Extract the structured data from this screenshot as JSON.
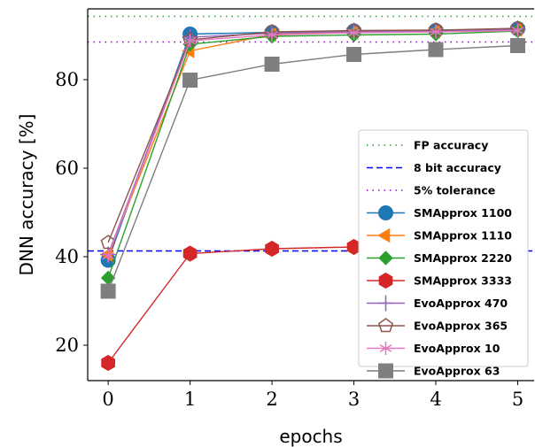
{
  "chart_data": {
    "type": "line",
    "title": "",
    "xlabel": "epochs",
    "ylabel": "DNN accuracy [%]",
    "xlim": [
      -0.25,
      5.2
    ],
    "ylim": [
      12,
      96
    ],
    "xticks": [
      0,
      1,
      2,
      3,
      4,
      5
    ],
    "yticks": [
      20,
      40,
      60,
      80
    ],
    "grid": false,
    "legend_position": "center-right",
    "reference_lines": [
      {
        "name": "FP accuracy",
        "y": 94.3,
        "style": "dotted",
        "color": "#2ca02c"
      },
      {
        "name": "8 bit accuracy",
        "y": 41.3,
        "style": "dashed",
        "color": "#0000ff"
      },
      {
        "name": "5% tolerance",
        "y": 88.5,
        "style": "dotted",
        "color": "#9400d3"
      }
    ],
    "x": [
      0,
      1,
      2,
      3,
      4,
      5
    ],
    "series": [
      {
        "name": "SMApprox 1100",
        "color": "#1f77b4",
        "marker": "circle",
        "values": [
          39.2,
          90.3,
          90.7,
          91.0,
          91.1,
          91.5
        ]
      },
      {
        "name": "SMApprox 1110",
        "color": "#ff7f0e",
        "marker": "triangle-left",
        "values": [
          40.5,
          86.5,
          90.2,
          90.7,
          90.9,
          91.3
        ]
      },
      {
        "name": "SMApprox 2220",
        "color": "#2ca02c",
        "marker": "diamond",
        "values": [
          35.2,
          88.0,
          89.8,
          90.1,
          90.3,
          91.0
        ]
      },
      {
        "name": "SMApprox 3333",
        "color": "#d62728",
        "marker": "hexagon",
        "values": [
          16.0,
          40.7,
          41.8,
          42.2,
          null,
          null
        ]
      },
      {
        "name": "EvoApprox 470",
        "color": "#9467bd",
        "marker": "plus",
        "values": [
          40.5,
          89.6,
          90.5,
          90.9,
          91.0,
          91.4
        ]
      },
      {
        "name": "EvoApprox 365",
        "color": "#8c564b",
        "marker": "pentagon",
        "values": [
          43.2,
          89.0,
          90.8,
          91.1,
          91.2,
          91.6
        ]
      },
      {
        "name": "EvoApprox 10",
        "color": "#e377c2",
        "marker": "star",
        "values": [
          40.2,
          88.8,
          90.1,
          90.6,
          90.8,
          91.1
        ]
      },
      {
        "name": "EvoApprox 63",
        "color": "#7f7f7f",
        "marker": "square",
        "values": [
          32.2,
          79.9,
          83.5,
          85.7,
          86.8,
          87.7
        ]
      }
    ]
  }
}
